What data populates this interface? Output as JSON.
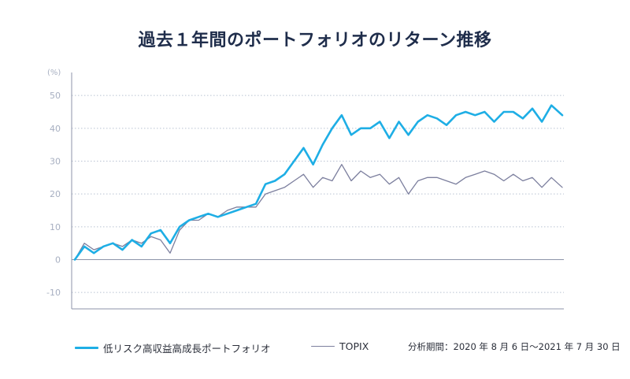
{
  "chart_data": {
    "type": "line",
    "title": "過去１年間のポートフォリオのリターン推移",
    "y_unit": "(%)",
    "ylim": [
      -15,
      57
    ],
    "yticks": [
      -10,
      0,
      10,
      20,
      30,
      40,
      50
    ],
    "grid": "horizontal dotted",
    "x_range": [
      "2020-08-06",
      "2021-07-30"
    ],
    "series": [
      {
        "name": "低リスク高収益高成長ポートフォリオ",
        "color": "#1eaee5",
        "x": [
          "2020-08-06",
          "2020-08-13",
          "2020-08-20",
          "2020-08-27",
          "2020-09-03",
          "2020-09-10",
          "2020-09-17",
          "2020-09-24",
          "2020-10-01",
          "2020-10-08",
          "2020-10-15",
          "2020-10-22",
          "2020-10-29",
          "2020-11-05",
          "2020-11-12",
          "2020-11-19",
          "2020-11-26",
          "2020-12-03",
          "2020-12-10",
          "2020-12-17",
          "2020-12-24",
          "2020-12-31",
          "2021-01-07",
          "2021-01-14",
          "2021-01-21",
          "2021-01-28",
          "2021-02-04",
          "2021-02-11",
          "2021-02-18",
          "2021-02-25",
          "2021-03-04",
          "2021-03-11",
          "2021-03-18",
          "2021-03-25",
          "2021-04-01",
          "2021-04-08",
          "2021-04-15",
          "2021-04-22",
          "2021-04-29",
          "2021-05-06",
          "2021-05-13",
          "2021-05-20",
          "2021-05-27",
          "2021-06-03",
          "2021-06-10",
          "2021-06-17",
          "2021-06-24",
          "2021-07-01",
          "2021-07-08",
          "2021-07-15",
          "2021-07-22",
          "2021-07-30"
        ],
        "values": [
          0,
          4,
          2,
          4,
          5,
          3,
          6,
          4,
          8,
          9,
          5,
          10,
          12,
          13,
          14,
          13,
          14,
          15,
          16,
          17,
          23,
          24,
          26,
          30,
          34,
          29,
          35,
          40,
          44,
          38,
          40,
          40,
          42,
          37,
          42,
          38,
          42,
          44,
          43,
          41,
          44,
          45,
          44,
          45,
          42,
          45,
          45,
          43,
          46,
          42,
          47,
          44
        ]
      },
      {
        "name": "TOPIX",
        "color": "#7c7f9e",
        "x": [
          "2020-08-06",
          "2020-08-13",
          "2020-08-20",
          "2020-08-27",
          "2020-09-03",
          "2020-09-10",
          "2020-09-17",
          "2020-09-24",
          "2020-10-01",
          "2020-10-08",
          "2020-10-15",
          "2020-10-22",
          "2020-10-29",
          "2020-11-05",
          "2020-11-12",
          "2020-11-19",
          "2020-11-26",
          "2020-12-03",
          "2020-12-10",
          "2020-12-17",
          "2020-12-24",
          "2020-12-31",
          "2021-01-07",
          "2021-01-14",
          "2021-01-21",
          "2021-01-28",
          "2021-02-04",
          "2021-02-11",
          "2021-02-18",
          "2021-02-25",
          "2021-03-04",
          "2021-03-11",
          "2021-03-18",
          "2021-03-25",
          "2021-04-01",
          "2021-04-08",
          "2021-04-15",
          "2021-04-22",
          "2021-04-29",
          "2021-05-06",
          "2021-05-13",
          "2021-05-20",
          "2021-05-27",
          "2021-06-03",
          "2021-06-10",
          "2021-06-17",
          "2021-06-24",
          "2021-07-01",
          "2021-07-08",
          "2021-07-15",
          "2021-07-22",
          "2021-07-30"
        ],
        "values": [
          0,
          5,
          3,
          4,
          5,
          4,
          6,
          5,
          7,
          6,
          2,
          9,
          12,
          12,
          14,
          13,
          15,
          16,
          16,
          16,
          20,
          21,
          22,
          24,
          26,
          22,
          25,
          24,
          29,
          24,
          27,
          25,
          26,
          23,
          25,
          20,
          24,
          25,
          25,
          24,
          23,
          25,
          26,
          27,
          26,
          24,
          26,
          24,
          25,
          22,
          25,
          22
        ]
      }
    ],
    "legend_position": "bottom-left",
    "period_note": "分析期間：2020 年 8 月 6 日〜2021 年 7 月 30 日"
  }
}
